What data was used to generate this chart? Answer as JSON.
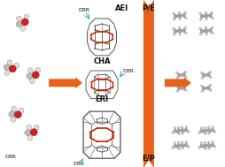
{
  "bg_color": "#ffffff",
  "arrow_color": "#E8621A",
  "label_AEI": "AEI",
  "label_CHA": "CHA",
  "label_ERI": "ERI",
  "label_D8R": "D8R",
  "label_PE": "P/E",
  "label_EP": "E/P",
  "cage_color": "#555555",
  "red_color": "#CC2200",
  "cyan_color": "#44AACC",
  "figsize": [
    2.55,
    1.89
  ],
  "dpi": 100
}
